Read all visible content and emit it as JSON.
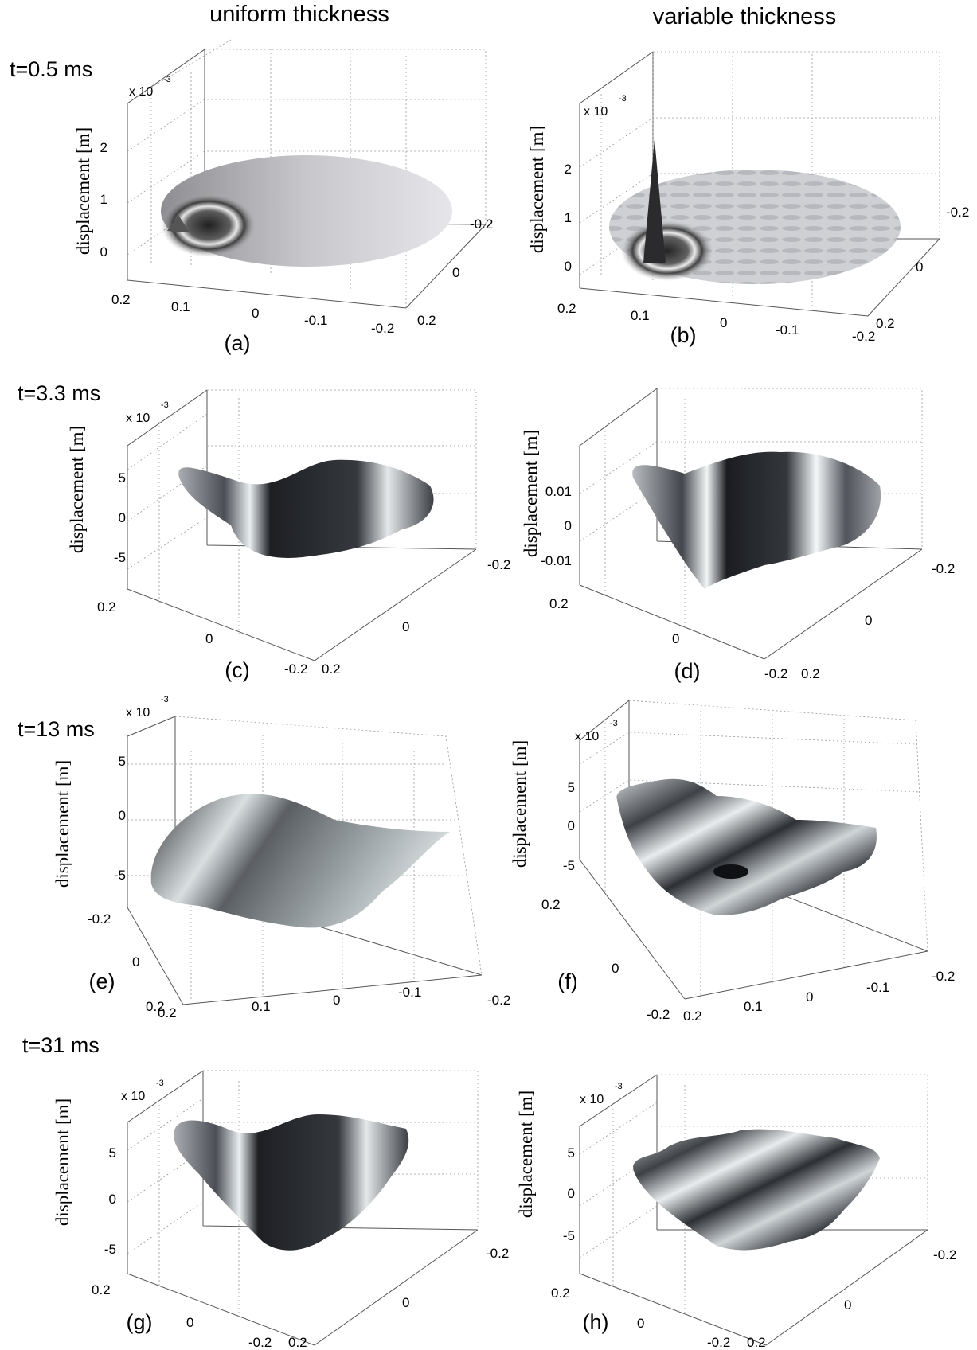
{
  "header": {
    "left_title": "uniform thickness",
    "right_title": "variable thickness"
  },
  "rows": [
    {
      "time": "t=0.5 ms"
    },
    {
      "time": "t=3.3 ms"
    },
    {
      "time": "t=13 ms"
    },
    {
      "time": "t=31 ms"
    }
  ],
  "common": {
    "ylabel": "displacement [m]",
    "exponent": "x 10",
    "exponent_power": "-3"
  },
  "panels": {
    "a": {
      "label": "(a)",
      "zticks": [
        "2",
        "1",
        "0"
      ],
      "xticks": [
        "0.2",
        "0.1",
        "0",
        "-0.1",
        "-0.2"
      ],
      "yticks": [
        "-0.2",
        "0",
        "0.2"
      ]
    },
    "b": {
      "label": "(b)",
      "zticks": [
        "2",
        "1",
        "0"
      ],
      "xticks": [
        "0.2",
        "0.1",
        "0",
        "-0.1",
        "-0.2"
      ],
      "yticks": [
        "-0.2",
        "0",
        "0.2"
      ]
    },
    "c": {
      "label": "(c)",
      "zticks": [
        "5",
        "0",
        "-5"
      ],
      "xticks": [
        "0.2",
        "0",
        "-0.2"
      ],
      "yticks": [
        "-0.2",
        "0",
        "0.2"
      ]
    },
    "d": {
      "label": "(d)",
      "zticks": [
        "0.01",
        "0",
        "-0.01"
      ],
      "xticks": [
        "0.2",
        "0",
        "-0.2"
      ],
      "yticks": [
        "-0.2",
        "0",
        "0.2"
      ]
    },
    "e": {
      "label": "(e)",
      "zticks": [
        "5",
        "0",
        "-5"
      ],
      "xticks": [
        "0.2",
        "0.1",
        "0",
        "-0.1",
        "-0.2"
      ],
      "yticks": [
        "-0.2",
        "0",
        "0.2"
      ]
    },
    "f": {
      "label": "(f)",
      "zticks": [
        "5",
        "0",
        "-5"
      ],
      "xticks": [
        "-0.2",
        "0.1",
        "0",
        "-0.1",
        "-0.2"
      ],
      "xticks2": [
        "0.2",
        "0.2"
      ],
      "yticks": [
        "0.2",
        "0"
      ]
    },
    "g": {
      "label": "(g)",
      "zticks": [
        "5",
        "0",
        "-5"
      ],
      "xticks": [
        "0.2",
        "0",
        "-0.2"
      ],
      "yticks": [
        "-0.2",
        "0",
        "0.2"
      ]
    },
    "h": {
      "label": "(h)",
      "zticks": [
        "5",
        "0",
        "-5"
      ],
      "xticks": [
        "0.2",
        "0",
        "-0.2"
      ],
      "yticks": [
        "-0.2",
        "0",
        "0.2"
      ]
    }
  },
  "colors": {
    "surface_light": "#d8d8dc",
    "surface_dark": "#2a2c30",
    "highlight": "#e8eef0"
  }
}
